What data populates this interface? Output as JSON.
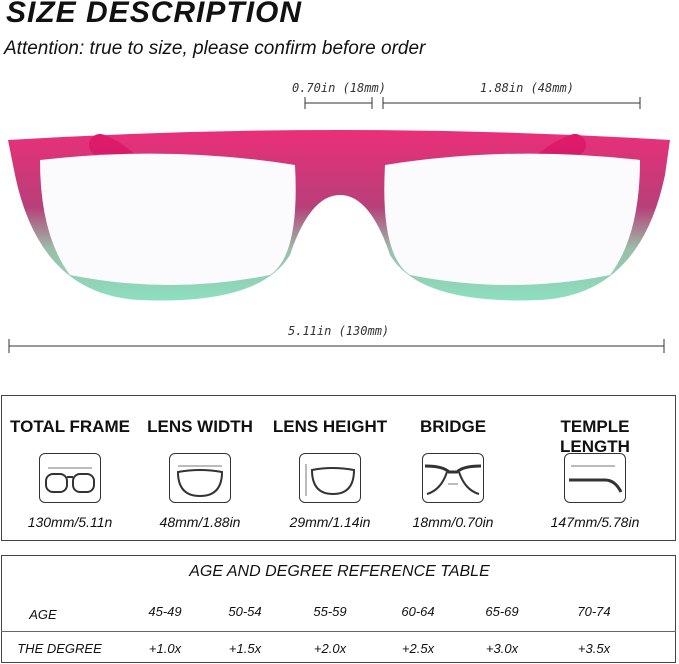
{
  "title": "SIZE  DESCRIPTION",
  "attention": "Attention: true to size, please confirm before order",
  "dims": {
    "bridge": "0.70in (18mm)",
    "lens": "1.88in (48mm)",
    "total": "5.11in (130mm)"
  },
  "colors": {
    "pink": "#e8186a",
    "gray": "#4a3f4a",
    "mint": "#7fdcb9"
  },
  "specs": [
    {
      "label": "TOTAL FRAME",
      "value": "130mm/5.11n",
      "icon": "total-frame-icon"
    },
    {
      "label": "LENS WIDTH",
      "value": "48mm/1.88in",
      "icon": "lens-width-icon"
    },
    {
      "label": "LENS HEIGHT",
      "value": "29mm/1.14in",
      "icon": "lens-height-icon"
    },
    {
      "label": "BRIDGE",
      "value": "18mm/0.70in",
      "icon": "bridge-icon"
    },
    {
      "label": "TEMPLE LENGTH",
      "value": "147mm/5.78in",
      "icon": "temple-length-icon"
    }
  ],
  "table": {
    "title": "AGE AND DEGREE REFERENCE TABLE",
    "age_label": "AGE",
    "degree_label": "THE DEGREE",
    "ages": [
      "45-49",
      "50-54",
      "55-59",
      "60-64",
      "65-69",
      "70-74"
    ],
    "degrees": [
      "+1.0x",
      "+1.5x",
      "+2.0x",
      "+2.5x",
      "+3.0x",
      "+3.5x"
    ]
  }
}
